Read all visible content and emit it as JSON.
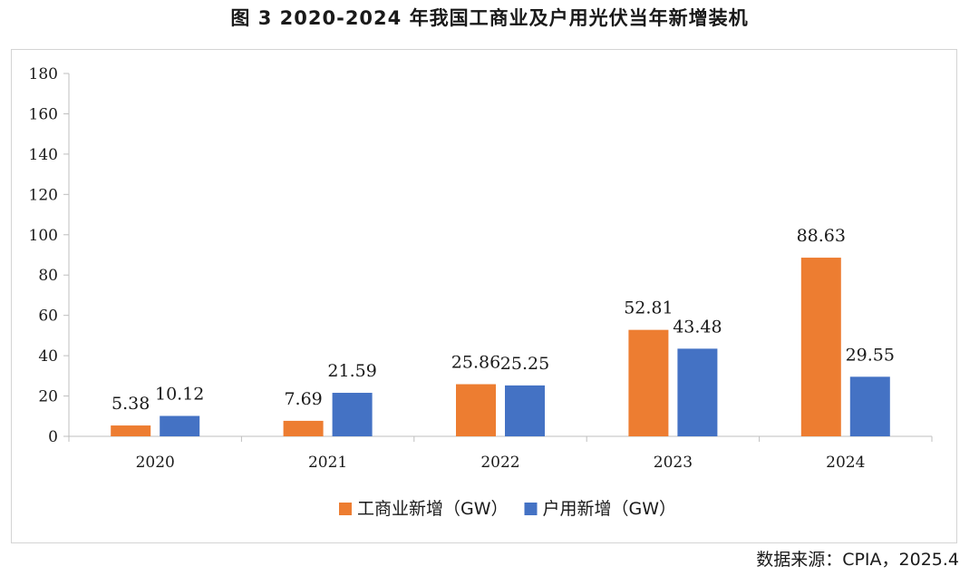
{
  "chart_data": {
    "type": "bar",
    "title": "图  3 2020-2024 年我国工商业及户用光伏当年新增装机",
    "categories": [
      "2020",
      "2021",
      "2022",
      "2023",
      "2024"
    ],
    "series": [
      {
        "name": "工商业新增（GW）",
        "color": "#ed7d31",
        "values": [
          5.38,
          7.69,
          25.86,
          52.81,
          88.63
        ],
        "labels": [
          "5.38",
          "7.69",
          "25.86",
          "52.81",
          "88.63"
        ]
      },
      {
        "name": "户用新增（GW）",
        "color": "#4472c4",
        "values": [
          10.12,
          21.59,
          25.25,
          43.48,
          29.55
        ],
        "labels": [
          "10.12",
          "21.59",
          "25.25",
          "43.48",
          "29.55"
        ]
      }
    ],
    "ylim": [
      0,
      180
    ],
    "yticks": [
      0,
      20,
      40,
      60,
      80,
      100,
      120,
      140,
      160,
      180
    ],
    "ytick_labels": [
      "0",
      "20",
      "40",
      "60",
      "80",
      "100",
      "120",
      "140",
      "160",
      "180"
    ],
    "grid": false,
    "legend_position": "bottom"
  },
  "source": "数据来源：CPIA，2025.4"
}
